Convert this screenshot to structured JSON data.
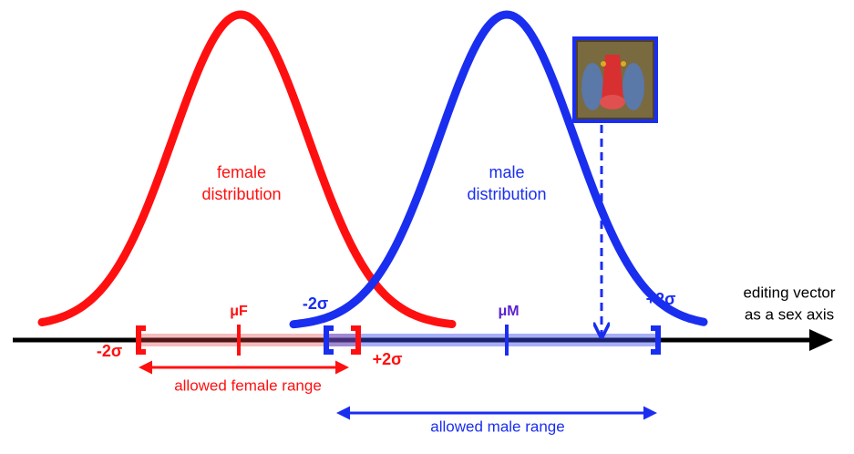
{
  "female_label": [
    "female",
    "distribution"
  ],
  "male_label": [
    "male",
    "distribution"
  ],
  "mu_female": "μF",
  "mu_male": "μM",
  "female_minus": "-2σ",
  "female_plus": "+2σ",
  "male_minus": "-2σ",
  "male_plus": "+2σ",
  "axis_label": [
    "editing vector",
    "as a sex axis"
  ],
  "female_range": "allowed female range",
  "male_range": "allowed male range"
}
